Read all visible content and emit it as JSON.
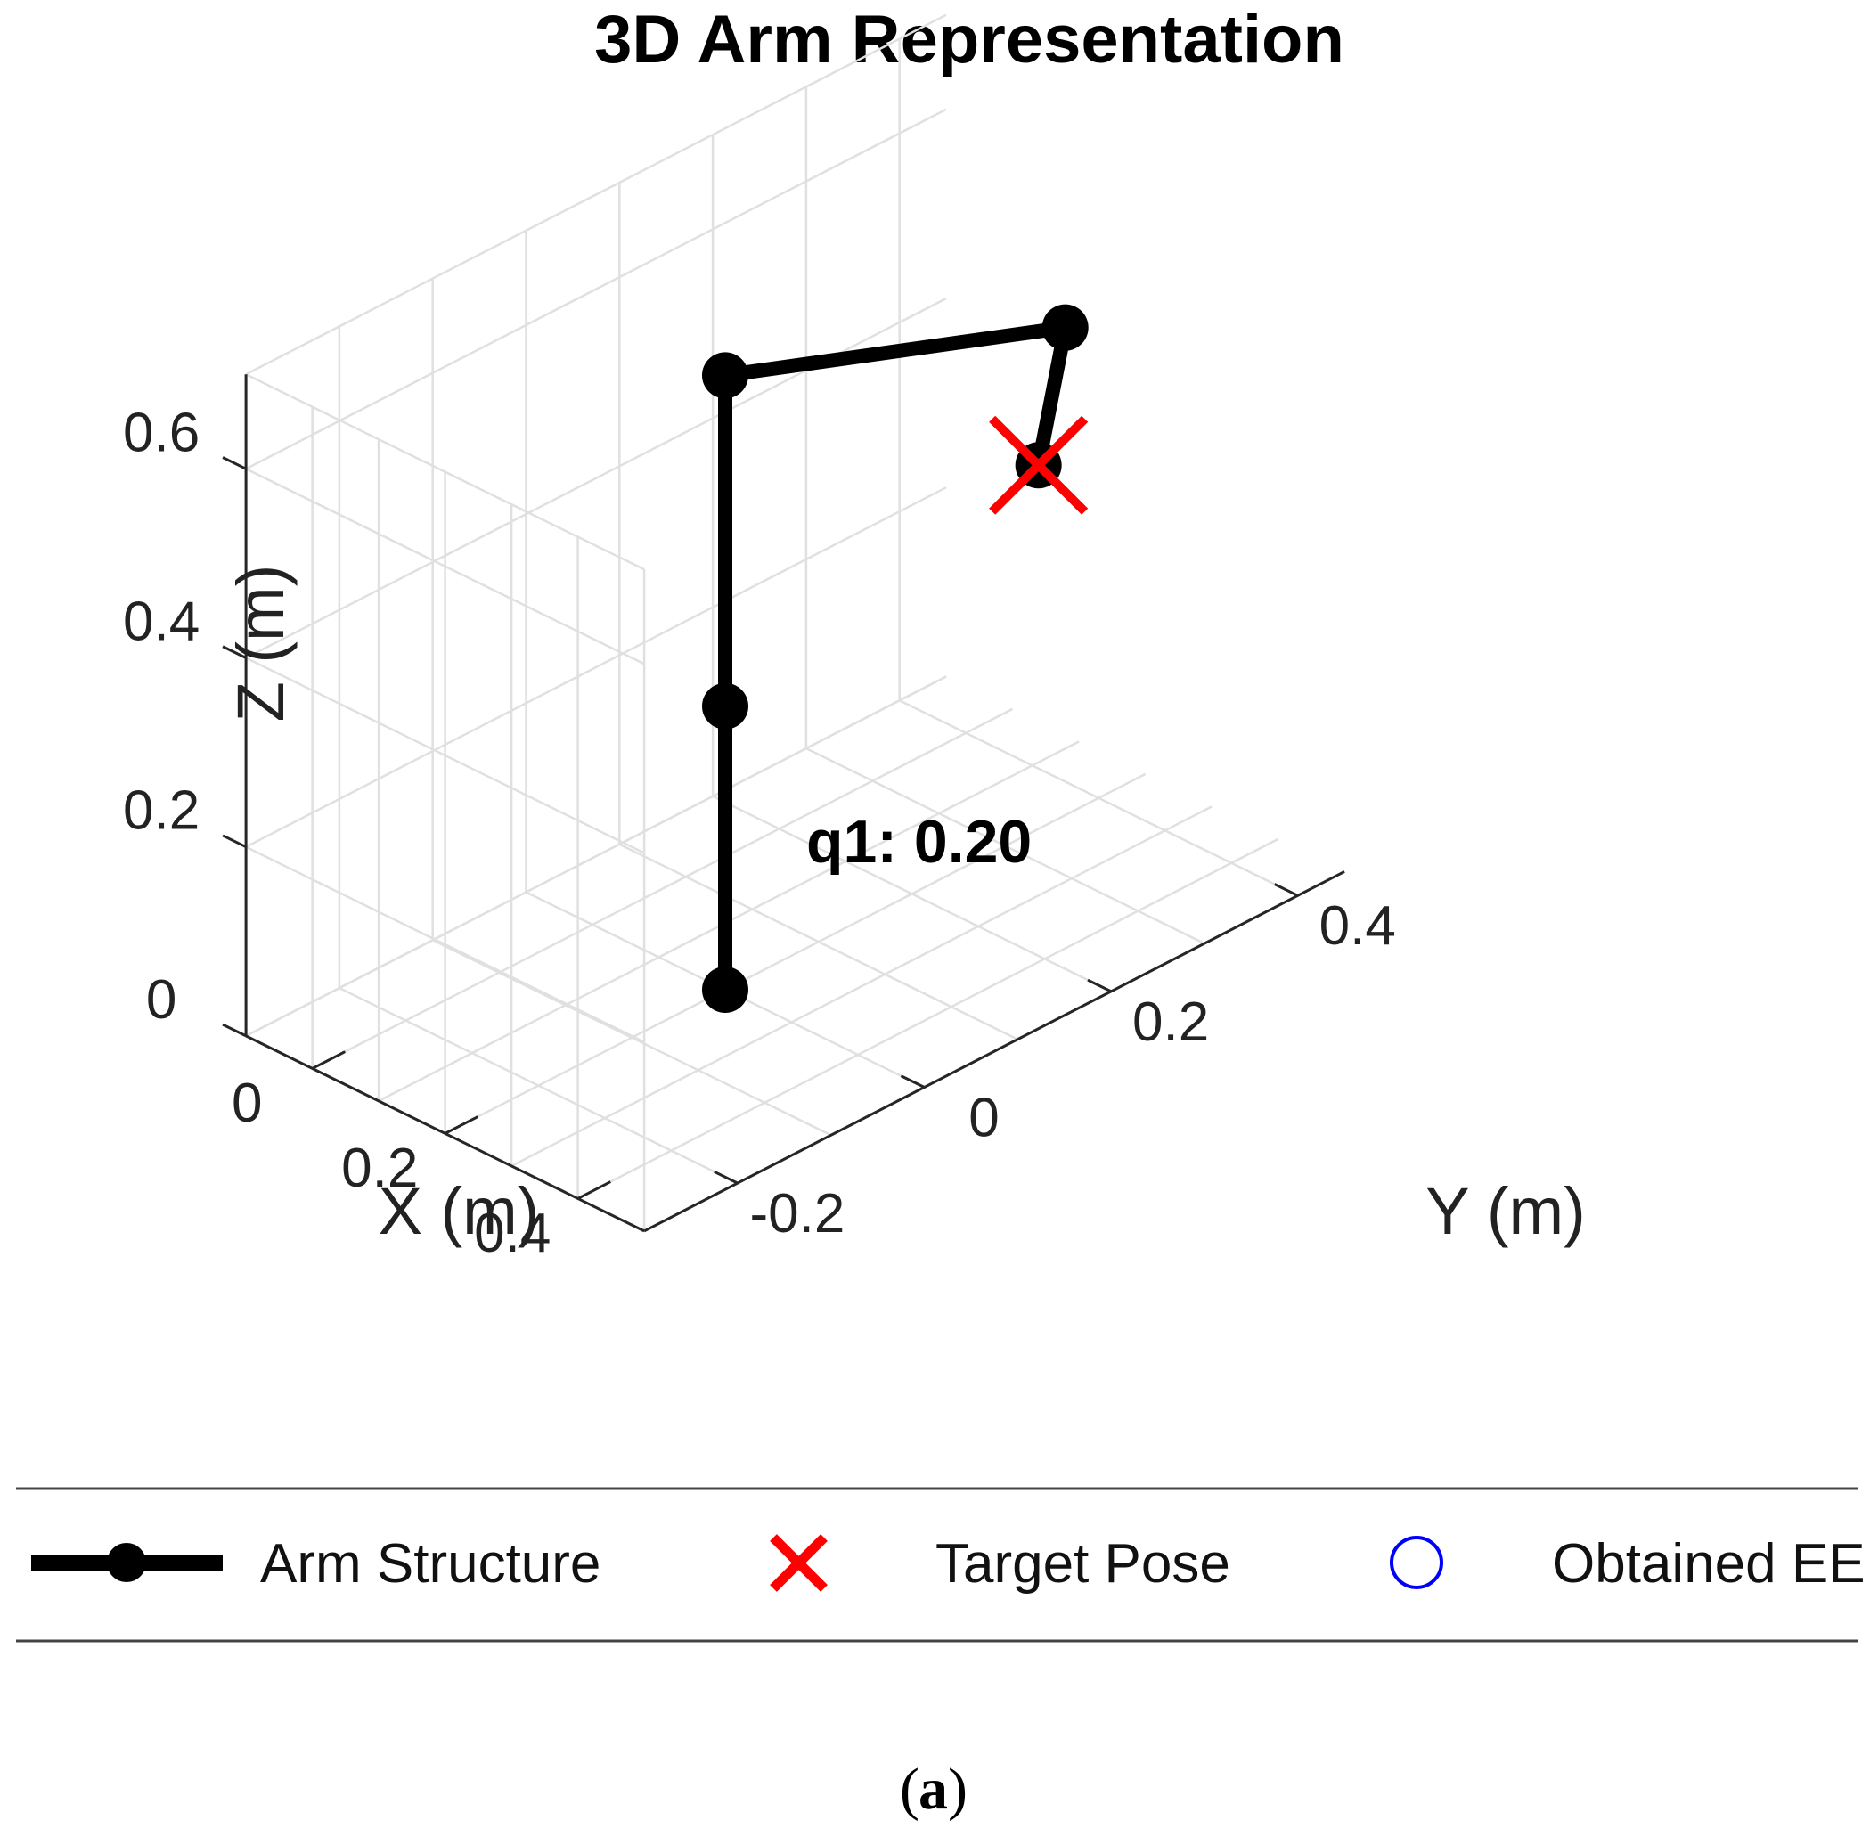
{
  "chart_data": {
    "type": "line",
    "title": "3D Arm Representation",
    "xlabel": "X (m)",
    "ylabel": "Y (m)",
    "zlabel": "Z (m)",
    "xlim": [
      -0.1,
      0.5
    ],
    "ylim": [
      -0.3,
      0.45
    ],
    "zlim": [
      0,
      0.7
    ],
    "x_ticks": [
      "0",
      "0.2",
      "0.4"
    ],
    "y_ticks": [
      "-0.2",
      "0",
      "0.2",
      "0.4"
    ],
    "z_ticks": [
      "0",
      "0.2",
      "0.4",
      "0.6"
    ],
    "grid": true,
    "series": [
      {
        "name": "Arm Structure",
        "color": "#000000",
        "marker": "circle",
        "x": [
          0.2,
          0.2,
          0.2,
          0.22,
          0.25
        ],
        "y": [
          0.0,
          0.0,
          0.0,
          0.35,
          0.3
        ],
        "z": [
          0.0,
          0.3,
          0.65,
          0.53,
          0.42
        ]
      },
      {
        "name": "Target Pose",
        "color": "#ff0000",
        "marker": "x",
        "x": [
          0.25
        ],
        "y": [
          0.3
        ],
        "z": [
          0.42
        ]
      },
      {
        "name": "Obtained EE",
        "color": "#0000ff",
        "marker": "circle-open",
        "x": [],
        "y": [],
        "z": []
      }
    ],
    "annotations": [
      {
        "text": "q1: 0.20",
        "x": 0.2,
        "y": 0.0,
        "z": 0.12
      }
    ],
    "legend": {
      "position": "bottom",
      "orientation": "horizontal",
      "entries": [
        "Arm Structure",
        "Target Pose",
        "Obtained EE"
      ]
    }
  },
  "caption": {
    "open": "(",
    "label": "a",
    "close": ")"
  }
}
